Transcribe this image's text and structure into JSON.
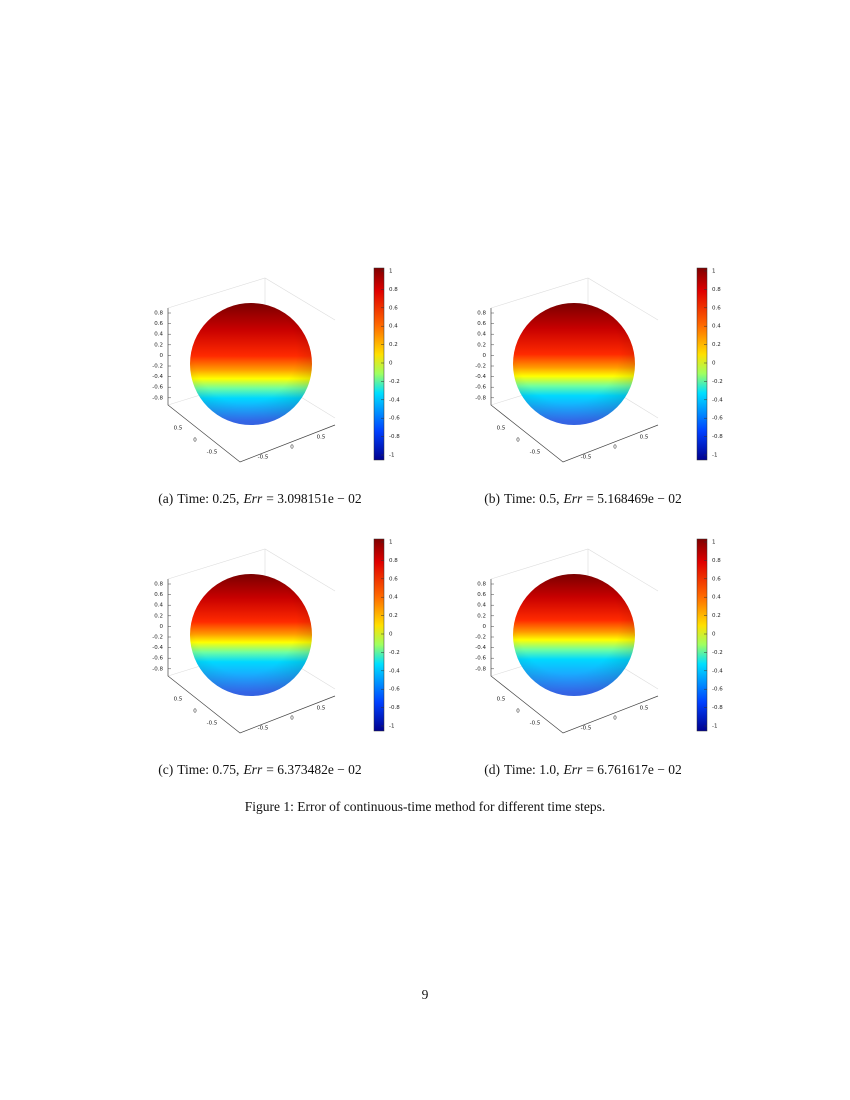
{
  "panels": [
    {
      "caption": {
        "label": "(a)",
        "text": "Time: 0.25,",
        "variable": "Err",
        "equation": "= 3.098151e − 02"
      },
      "z_ticks": [
        0.8,
        0.6,
        0.4,
        0.2,
        0,
        -0.2,
        -0.4,
        -0.6,
        -0.8
      ],
      "x_ticks": [
        0.5,
        0,
        -0.5
      ],
      "y_ticks": [
        -0.5,
        0,
        0.5
      ],
      "colorbar_ticks": [
        1,
        0.8,
        0.6,
        0.4,
        0.2,
        0,
        -0.2,
        -0.4,
        -0.6,
        -0.8,
        -1
      ]
    },
    {
      "caption": {
        "label": "(b)",
        "text": "Time: 0.5,",
        "variable": "Err",
        "equation": "= 5.168469e − 02"
      },
      "z_ticks": [
        0.8,
        0.6,
        0.4,
        0.2,
        0,
        -0.2,
        -0.4,
        -0.6,
        -0.8
      ],
      "x_ticks": [
        0.5,
        0,
        -0.5
      ],
      "y_ticks": [
        -0.5,
        0,
        0.5
      ],
      "colorbar_ticks": [
        1,
        0.8,
        0.6,
        0.4,
        0.2,
        0,
        -0.2,
        -0.4,
        -0.6,
        -0.8,
        -1
      ]
    },
    {
      "caption": {
        "label": "(c)",
        "text": "Time: 0.75,",
        "variable": "Err",
        "equation": "= 6.373482e − 02"
      },
      "z_ticks": [
        0.8,
        0.6,
        0.4,
        0.2,
        0,
        -0.2,
        -0.4,
        -0.6,
        -0.8
      ],
      "x_ticks": [
        0.5,
        0,
        -0.5
      ],
      "y_ticks": [
        -0.5,
        0,
        0.5
      ],
      "colorbar_ticks": [
        1,
        0.8,
        0.6,
        0.4,
        0.2,
        0,
        -0.2,
        -0.4,
        -0.6,
        -0.8,
        -1
      ]
    },
    {
      "caption": {
        "label": "(d)",
        "text": "Time: 1.0,",
        "variable": "Err",
        "equation": "= 6.761617e − 02"
      },
      "z_ticks": [
        0.8,
        0.6,
        0.4,
        0.2,
        0,
        -0.2,
        -0.4,
        -0.6,
        -0.8
      ],
      "x_ticks": [
        0.5,
        0,
        -0.5
      ],
      "y_ticks": [
        -0.5,
        0,
        0.5
      ],
      "colorbar_ticks": [
        1,
        0.8,
        0.6,
        0.4,
        0.2,
        0,
        -0.2,
        -0.4,
        -0.6,
        -0.8,
        -1
      ]
    }
  ],
  "caption": "Figure 1: Error of continuous-time method for different time steps.",
  "page_number": "9"
}
